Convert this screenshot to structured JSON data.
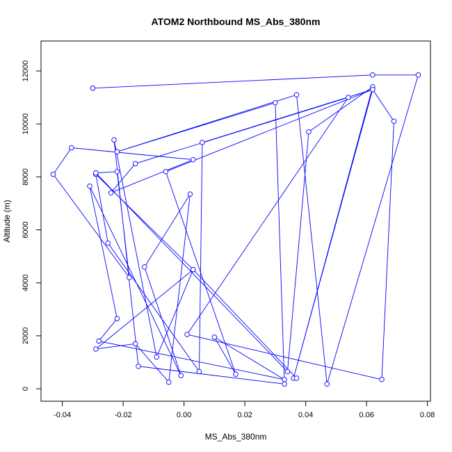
{
  "chart_data": {
    "type": "line",
    "title": "ATOM2 Northbound MS_Abs_380nm",
    "xlabel": "MS_Abs_380nm",
    "ylabel": "Altitude (m)",
    "xlim": [
      -0.047,
      0.081
    ],
    "ylim": [
      -470,
      13130
    ],
    "xticks": [
      -0.04,
      -0.02,
      0.0,
      0.02,
      0.04,
      0.06,
      0.08
    ],
    "xtick_labels": [
      "-0.04",
      "-0.02",
      "0.00",
      "0.02",
      "0.04",
      "0.06",
      "0.08"
    ],
    "yticks": [
      0,
      2000,
      4000,
      6000,
      8000,
      10000,
      12000
    ],
    "ytick_labels": [
      "0",
      "2000",
      "4000",
      "6000",
      "8000",
      "10000",
      "12000"
    ],
    "grid": false,
    "series": [
      {
        "color": "#0000ff",
        "marker": "open-circle",
        "x": [
          -0.03,
          0.062,
          0.077,
          0.047,
          0.037,
          -0.022,
          0.03,
          0.033,
          -0.015,
          -0.023,
          -0.009,
          0.003,
          -0.029,
          -0.025,
          0.005,
          0.006,
          0.062,
          0.069,
          0.065,
          0.001,
          0.054,
          -0.016,
          -0.024,
          0.003,
          -0.037,
          -0.043,
          -0.018,
          -0.022,
          -0.029,
          0.034,
          0.041,
          0.062,
          0.036,
          0.062,
          -0.006,
          0.017,
          0.01,
          0.033,
          -0.028,
          -0.022,
          -0.031,
          -0.001,
          -0.013,
          0.002,
          -0.005,
          -0.016,
          -0.029,
          0.003,
          0.037
        ],
        "y": [
          11350,
          11850,
          11850,
          180,
          11100,
          8950,
          10800,
          180,
          850,
          9400,
          1200,
          4500,
          8100,
          5500,
          650,
          9300,
          11300,
          10100,
          350,
          2050,
          11000,
          8500,
          7400,
          8650,
          9100,
          8100,
          4200,
          8200,
          8150,
          650,
          9700,
          11400,
          400,
          11300,
          8200,
          550,
          1950,
          350,
          1800,
          2650,
          7650,
          500,
          4600,
          7350,
          250,
          1700,
          1500,
          4500,
          400
        ]
      }
    ]
  }
}
